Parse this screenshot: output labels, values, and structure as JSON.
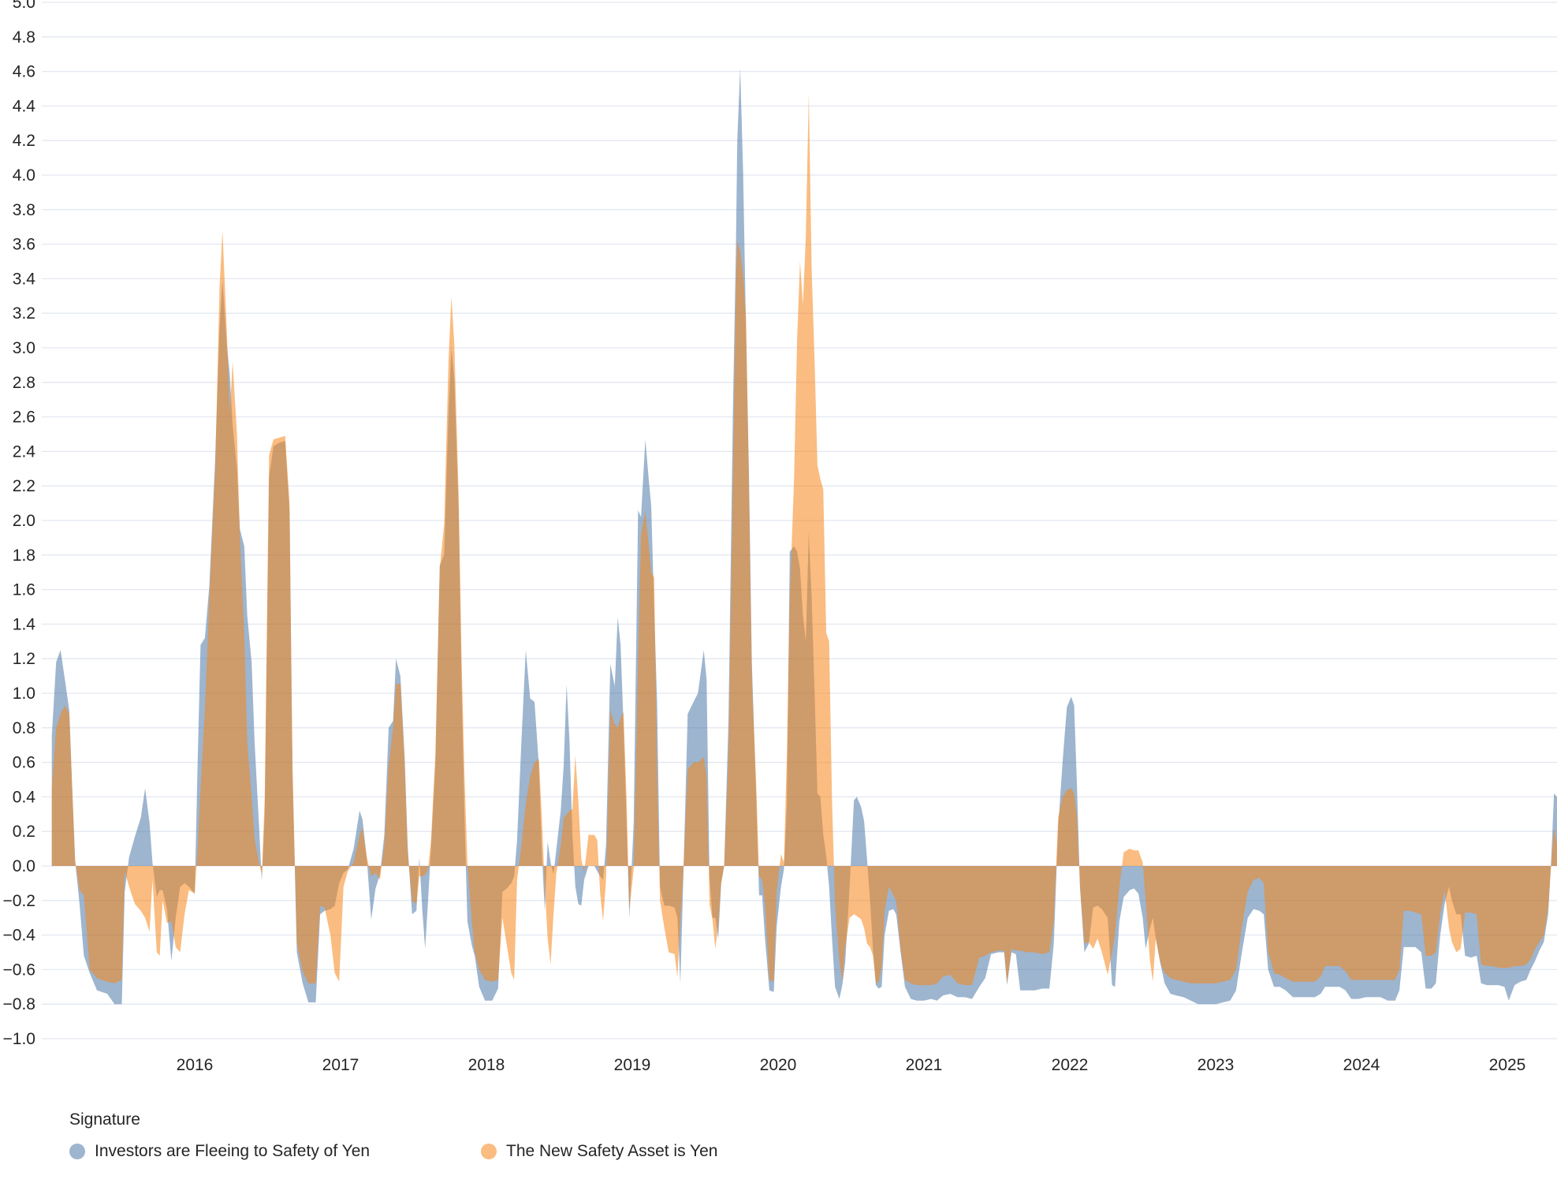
{
  "chart_data": {
    "type": "area",
    "title": "",
    "legend": {
      "title": "Signature",
      "items": [
        {
          "label": "Investors are Fleeing to Safety of Yen",
          "series": "blue"
        },
        {
          "label": "The New Safety Asset is Yen",
          "series": "orange"
        }
      ],
      "position": "bottom-left"
    },
    "colors": {
      "blue_base": "#4c78a8",
      "orange_base": "#f58518",
      "fill_opacity": 0.55,
      "grid": "#e3e8f0",
      "label": "#252525",
      "background": "#ffffff"
    },
    "grid": true,
    "ylim": [
      -1.0,
      5.0
    ],
    "xlim": [
      2015.02,
      2025.35
    ],
    "y_tick_labels": [
      "5.0",
      "4.8",
      "4.6",
      "4.4",
      "4.2",
      "4.0",
      "3.8",
      "3.6",
      "3.4",
      "3.2",
      "3.0",
      "2.8",
      "2.6",
      "2.4",
      "2.2",
      "2.0",
      "1.8",
      "1.6",
      "1.4",
      "1.2",
      "1.0",
      "0.8",
      "0.6",
      "0.4",
      "0.2",
      "0.0",
      "−0.2",
      "−0.4",
      "−0.6",
      "−0.8",
      "−1.0"
    ],
    "x_tick_labels": [
      "2016",
      "2017",
      "2018",
      "2019",
      "2020",
      "2021",
      "2022",
      "2023",
      "2024",
      "2025"
    ],
    "x_ticks": [
      2016,
      2017,
      2018,
      2019,
      2020,
      2021,
      2022,
      2023,
      2024,
      2025
    ],
    "x": [
      2015.02,
      2015.05,
      2015.08,
      2015.11,
      2015.14,
      2015.16,
      2015.18,
      2015.21,
      2015.24,
      2015.28,
      2015.33,
      2015.4,
      2015.45,
      2015.5,
      2015.52,
      2015.55,
      2015.59,
      2015.63,
      2015.66,
      2015.69,
      2015.71,
      2015.74,
      2015.76,
      2015.78,
      2015.81,
      2015.84,
      2015.87,
      2015.9,
      2015.93,
      2015.96,
      2016.0,
      2016.02,
      2016.04,
      2016.07,
      2016.1,
      2016.14,
      2016.17,
      2016.19,
      2016.22,
      2016.24,
      2016.26,
      2016.29,
      2016.31,
      2016.34,
      2016.36,
      2016.39,
      2016.41,
      2016.44,
      2016.46,
      2016.48,
      2016.51,
      2016.54,
      2016.58,
      2016.62,
      2016.65,
      2016.67,
      2016.7,
      2016.74,
      2016.78,
      2016.83,
      2016.86,
      2016.89,
      2016.93,
      2016.96,
      2016.99,
      2017.02,
      2017.05,
      2017.09,
      2017.13,
      2017.15,
      2017.18,
      2017.21,
      2017.24,
      2017.27,
      2017.3,
      2017.33,
      2017.36,
      2017.38,
      2017.41,
      2017.44,
      2017.46,
      2017.49,
      2017.52,
      2017.54,
      2017.56,
      2017.58,
      2017.6,
      2017.62,
      2017.65,
      2017.68,
      2017.71,
      2017.74,
      2017.76,
      2017.78,
      2017.81,
      2017.83,
      2017.85,
      2017.87,
      2017.9,
      2017.92,
      2017.95,
      2017.99,
      2018.04,
      2018.08,
      2018.11,
      2018.14,
      2018.17,
      2018.19,
      2018.21,
      2018.24,
      2018.27,
      2018.3,
      2018.33,
      2018.36,
      2018.38,
      2018.4,
      2018.42,
      2018.44,
      2018.46,
      2018.48,
      2018.51,
      2018.53,
      2018.55,
      2018.57,
      2018.59,
      2018.61,
      2018.63,
      2018.65,
      2018.67,
      2018.7,
      2018.74,
      2018.76,
      2018.78,
      2018.8,
      2018.82,
      2018.85,
      2018.88,
      2018.9,
      2018.92,
      2018.94,
      2018.96,
      2018.98,
      2019.01,
      2019.04,
      2019.06,
      2019.09,
      2019.11,
      2019.13,
      2019.15,
      2019.17,
      2019.19,
      2019.22,
      2019.25,
      2019.29,
      2019.31,
      2019.33,
      2019.35,
      2019.38,
      2019.42,
      2019.45,
      2019.49,
      2019.51,
      2019.53,
      2019.55,
      2019.57,
      2019.59,
      2019.61,
      2019.63,
      2019.66,
      2019.69,
      2019.71,
      2019.72,
      2019.74,
      2019.76,
      2019.78,
      2019.8,
      2019.82,
      2019.85,
      2019.87,
      2019.89,
      2019.91,
      2019.94,
      2019.97,
      2019.99,
      2020.02,
      2020.04,
      2020.06,
      2020.08,
      2020.11,
      2020.13,
      2020.15,
      2020.17,
      2020.19,
      2020.21,
      2020.23,
      2020.25,
      2020.27,
      2020.29,
      2020.31,
      2020.33,
      2020.35,
      2020.37,
      2020.39,
      2020.42,
      2020.44,
      2020.46,
      2020.49,
      2020.52,
      2020.54,
      2020.57,
      2020.59,
      2020.61,
      2020.63,
      2020.65,
      2020.67,
      2020.69,
      2020.71,
      2020.73,
      2020.76,
      2020.79,
      2020.81,
      2020.84,
      2020.87,
      2020.91,
      2020.95,
      2021.0,
      2021.05,
      2021.09,
      2021.13,
      2021.18,
      2021.23,
      2021.28,
      2021.33,
      2021.38,
      2021.42,
      2021.46,
      2021.51,
      2021.55,
      2021.57,
      2021.6,
      2021.63,
      2021.66,
      2021.71,
      2021.76,
      2021.81,
      2021.86,
      2021.89,
      2021.92,
      2021.95,
      2021.98,
      2022.01,
      2022.03,
      2022.05,
      2022.07,
      2022.1,
      2022.13,
      2022.16,
      2022.19,
      2022.22,
      2022.26,
      2022.29,
      2022.31,
      2022.34,
      2022.37,
      2022.41,
      2022.44,
      2022.47,
      2022.5,
      2022.52,
      2022.55,
      2022.57,
      2022.59,
      2022.62,
      2022.65,
      2022.69,
      2022.73,
      2022.78,
      2022.83,
      2022.88,
      2022.94,
      2023.0,
      2023.05,
      2023.1,
      2023.14,
      2023.18,
      2023.22,
      2023.26,
      2023.3,
      2023.33,
      2023.36,
      2023.4,
      2023.44,
      2023.48,
      2023.53,
      2023.58,
      2023.63,
      2023.68,
      2023.72,
      2023.75,
      2023.8,
      2023.85,
      2023.89,
      2023.93,
      2023.98,
      2024.03,
      2024.08,
      2024.13,
      2024.18,
      2024.23,
      2024.26,
      2024.29,
      2024.33,
      2024.37,
      2024.41,
      2024.44,
      2024.48,
      2024.51,
      2024.54,
      2024.57,
      2024.6,
      2024.62,
      2024.65,
      2024.68,
      2024.71,
      2024.75,
      2024.79,
      2024.82,
      2024.86,
      2024.9,
      2024.94,
      2024.98,
      2025.01,
      2025.05,
      2025.09,
      2025.13,
      2025.16,
      2025.19,
      2025.22,
      2025.25,
      2025.28,
      2025.3,
      2025.32,
      2025.34,
      2025.35
    ],
    "series": [
      {
        "name": "Investors are Fleeing to Safety of Yen",
        "values": [
          0.75,
          1.18,
          1.25,
          1.08,
          0.9,
          0.45,
          0.03,
          -0.22,
          -0.52,
          -0.62,
          -0.72,
          -0.74,
          -0.8,
          -0.8,
          -0.15,
          0.05,
          0.17,
          0.28,
          0.45,
          0.25,
          0.02,
          -0.18,
          -0.14,
          -0.14,
          -0.25,
          -0.55,
          -0.3,
          -0.12,
          -0.1,
          -0.12,
          -0.16,
          0.6,
          1.28,
          1.32,
          1.62,
          2.35,
          3.12,
          3.39,
          3.02,
          2.85,
          2.55,
          2.3,
          1.95,
          1.85,
          1.45,
          1.18,
          0.72,
          0.25,
          -0.09,
          0.3,
          2.25,
          2.43,
          2.45,
          2.46,
          2.05,
          0.55,
          -0.5,
          -0.68,
          -0.79,
          -0.79,
          -0.28,
          -0.26,
          -0.25,
          -0.23,
          -0.1,
          -0.04,
          -0.02,
          0.1,
          0.32,
          0.27,
          0.04,
          -0.31,
          -0.13,
          -0.05,
          0.18,
          0.8,
          0.84,
          1.2,
          1.1,
          0.62,
          0.12,
          -0.28,
          -0.26,
          0.05,
          -0.25,
          -0.48,
          -0.2,
          0.1,
          0.6,
          1.74,
          1.8,
          2.62,
          3.0,
          2.82,
          2.05,
          1.05,
          0.28,
          -0.32,
          -0.46,
          -0.52,
          -0.7,
          -0.78,
          -0.78,
          -0.71,
          -0.15,
          -0.13,
          -0.1,
          -0.06,
          0.15,
          0.72,
          1.25,
          0.97,
          0.95,
          0.58,
          0.08,
          -0.26,
          0.14,
          0.02,
          -0.05,
          0.1,
          0.32,
          0.58,
          1.05,
          0.72,
          0.18,
          -0.12,
          -0.22,
          -0.23,
          -0.08,
          0.0,
          0.0,
          -0.03,
          -0.06,
          -0.08,
          0.12,
          1.17,
          1.04,
          1.44,
          1.28,
          0.82,
          0.28,
          -0.3,
          0.25,
          2.06,
          2.02,
          2.47,
          2.27,
          2.08,
          1.48,
          0.95,
          -0.12,
          -0.23,
          -0.23,
          -0.24,
          -0.3,
          -0.68,
          -0.08,
          0.88,
          0.95,
          1.0,
          1.25,
          1.08,
          -0.06,
          -0.3,
          -0.3,
          -0.42,
          -0.1,
          0.0,
          0.85,
          2.65,
          3.55,
          4.2,
          4.62,
          4.02,
          3.1,
          2.28,
          1.18,
          0.4,
          -0.17,
          -0.17,
          -0.42,
          -0.72,
          -0.73,
          -0.35,
          -0.12,
          -0.02,
          0.35,
          1.82,
          1.85,
          1.82,
          1.72,
          1.45,
          1.3,
          1.93,
          1.55,
          1.0,
          0.42,
          0.4,
          0.18,
          0.06,
          -0.12,
          -0.42,
          -0.7,
          -0.77,
          -0.69,
          -0.56,
          -0.12,
          0.38,
          0.4,
          0.34,
          0.26,
          0.04,
          -0.2,
          -0.48,
          -0.69,
          -0.71,
          -0.7,
          -0.4,
          -0.26,
          -0.25,
          -0.28,
          -0.5,
          -0.7,
          -0.77,
          -0.78,
          -0.78,
          -0.77,
          -0.78,
          -0.75,
          -0.74,
          -0.76,
          -0.76,
          -0.77,
          -0.7,
          -0.65,
          -0.51,
          -0.5,
          -0.5,
          -0.69,
          -0.5,
          -0.51,
          -0.72,
          -0.72,
          -0.72,
          -0.71,
          -0.71,
          -0.45,
          0.22,
          0.6,
          0.92,
          0.98,
          0.93,
          0.45,
          -0.12,
          -0.5,
          -0.45,
          -0.24,
          -0.23,
          -0.25,
          -0.3,
          -0.69,
          -0.7,
          -0.32,
          -0.18,
          -0.14,
          -0.13,
          -0.16,
          -0.3,
          -0.48,
          -0.36,
          -0.3,
          -0.42,
          -0.56,
          -0.68,
          -0.74,
          -0.75,
          -0.76,
          -0.78,
          -0.8,
          -0.8,
          -0.8,
          -0.79,
          -0.78,
          -0.72,
          -0.5,
          -0.3,
          -0.25,
          -0.26,
          -0.28,
          -0.6,
          -0.7,
          -0.7,
          -0.72,
          -0.76,
          -0.76,
          -0.76,
          -0.76,
          -0.74,
          -0.7,
          -0.7,
          -0.7,
          -0.72,
          -0.77,
          -0.77,
          -0.76,
          -0.76,
          -0.76,
          -0.78,
          -0.78,
          -0.72,
          -0.47,
          -0.47,
          -0.47,
          -0.5,
          -0.71,
          -0.71,
          -0.68,
          -0.4,
          -0.22,
          -0.12,
          -0.2,
          -0.28,
          -0.28,
          -0.52,
          -0.53,
          -0.52,
          -0.68,
          -0.69,
          -0.69,
          -0.69,
          -0.7,
          -0.78,
          -0.69,
          -0.67,
          -0.66,
          -0.6,
          -0.55,
          -0.49,
          -0.44,
          -0.28,
          0.02,
          0.42,
          0.4,
          0.36
        ]
      },
      {
        "name": "The New Safety Asset is Yen",
        "values": [
          0.45,
          0.8,
          0.88,
          0.93,
          0.88,
          0.45,
          0.03,
          -0.14,
          -0.17,
          -0.6,
          -0.65,
          -0.67,
          -0.68,
          -0.66,
          -0.03,
          -0.12,
          -0.22,
          -0.26,
          -0.3,
          -0.38,
          -0.08,
          -0.5,
          -0.52,
          -0.2,
          -0.33,
          -0.32,
          -0.47,
          -0.5,
          -0.28,
          -0.14,
          -0.16,
          0.1,
          0.45,
          0.9,
          1.55,
          2.3,
          3.35,
          3.68,
          3.1,
          2.62,
          2.92,
          2.5,
          1.9,
          1.32,
          0.72,
          0.4,
          0.16,
          0.02,
          -0.05,
          0.4,
          2.38,
          2.47,
          2.48,
          2.49,
          2.1,
          0.58,
          -0.45,
          -0.61,
          -0.68,
          -0.68,
          -0.23,
          -0.24,
          -0.4,
          -0.62,
          -0.67,
          -0.12,
          -0.03,
          0.02,
          0.18,
          0.22,
          0.05,
          -0.06,
          -0.04,
          -0.08,
          0.12,
          0.58,
          0.8,
          1.05,
          1.06,
          0.58,
          0.08,
          -0.2,
          -0.22,
          -0.06,
          -0.06,
          -0.05,
          -0.02,
          0.15,
          0.65,
          1.72,
          1.98,
          2.92,
          3.3,
          3.02,
          2.15,
          1.2,
          0.52,
          0.02,
          -0.32,
          -0.5,
          -0.6,
          -0.66,
          -0.67,
          -0.66,
          -0.3,
          -0.46,
          -0.62,
          -0.66,
          -0.08,
          0.12,
          0.36,
          0.52,
          0.6,
          0.62,
          0.28,
          -0.12,
          -0.42,
          -0.57,
          -0.28,
          -0.04,
          0.12,
          0.28,
          0.3,
          0.32,
          0.33,
          0.64,
          0.38,
          0.04,
          -0.04,
          0.18,
          0.18,
          0.15,
          -0.16,
          -0.32,
          -0.08,
          0.9,
          0.82,
          0.8,
          0.86,
          0.89,
          0.42,
          -0.26,
          -0.02,
          1.2,
          1.92,
          2.05,
          1.88,
          1.7,
          1.67,
          0.55,
          -0.2,
          -0.36,
          -0.5,
          -0.51,
          -0.64,
          -0.32,
          -0.04,
          0.56,
          0.6,
          0.6,
          0.63,
          0.52,
          -0.22,
          -0.31,
          -0.48,
          -0.34,
          -0.1,
          0.0,
          0.65,
          2.25,
          3.35,
          3.62,
          3.56,
          3.42,
          3.18,
          2.2,
          1.08,
          0.48,
          -0.06,
          -0.08,
          -0.22,
          -0.66,
          -0.67,
          -0.15,
          0.07,
          0.02,
          0.65,
          1.55,
          2.25,
          3.05,
          3.5,
          3.25,
          3.65,
          4.47,
          3.45,
          2.92,
          2.32,
          2.24,
          2.18,
          1.35,
          1.3,
          0.38,
          -0.22,
          -0.55,
          -0.67,
          -0.47,
          -0.3,
          -0.28,
          -0.29,
          -0.31,
          -0.36,
          -0.45,
          -0.47,
          -0.52,
          -0.68,
          -0.67,
          -0.58,
          -0.26,
          -0.12,
          -0.17,
          -0.2,
          -0.48,
          -0.66,
          -0.68,
          -0.69,
          -0.69,
          -0.69,
          -0.68,
          -0.64,
          -0.63,
          -0.68,
          -0.69,
          -0.69,
          -0.53,
          -0.52,
          -0.5,
          -0.49,
          -0.49,
          -0.68,
          -0.48,
          -0.49,
          -0.49,
          -0.5,
          -0.5,
          -0.51,
          -0.5,
          -0.32,
          0.28,
          0.4,
          0.44,
          0.45,
          0.42,
          0.28,
          -0.12,
          -0.45,
          -0.44,
          -0.48,
          -0.42,
          -0.5,
          -0.63,
          -0.5,
          -0.4,
          -0.12,
          0.08,
          0.1,
          0.09,
          0.09,
          0.02,
          -0.2,
          -0.55,
          -0.67,
          -0.42,
          -0.56,
          -0.62,
          -0.65,
          -0.66,
          -0.67,
          -0.68,
          -0.68,
          -0.68,
          -0.68,
          -0.67,
          -0.66,
          -0.6,
          -0.35,
          -0.15,
          -0.08,
          -0.07,
          -0.1,
          -0.5,
          -0.62,
          -0.63,
          -0.65,
          -0.67,
          -0.67,
          -0.67,
          -0.67,
          -0.64,
          -0.58,
          -0.58,
          -0.58,
          -0.61,
          -0.66,
          -0.66,
          -0.66,
          -0.66,
          -0.66,
          -0.66,
          -0.66,
          -0.6,
          -0.26,
          -0.26,
          -0.27,
          -0.28,
          -0.52,
          -0.52,
          -0.5,
          -0.28,
          -0.14,
          -0.36,
          -0.44,
          -0.5,
          -0.48,
          -0.27,
          -0.27,
          -0.28,
          -0.57,
          -0.58,
          -0.58,
          -0.59,
          -0.59,
          -0.59,
          -0.58,
          -0.58,
          -0.57,
          -0.54,
          -0.48,
          -0.44,
          -0.4,
          -0.24,
          0.0,
          0.22,
          0.13,
          0.1
        ]
      }
    ]
  }
}
